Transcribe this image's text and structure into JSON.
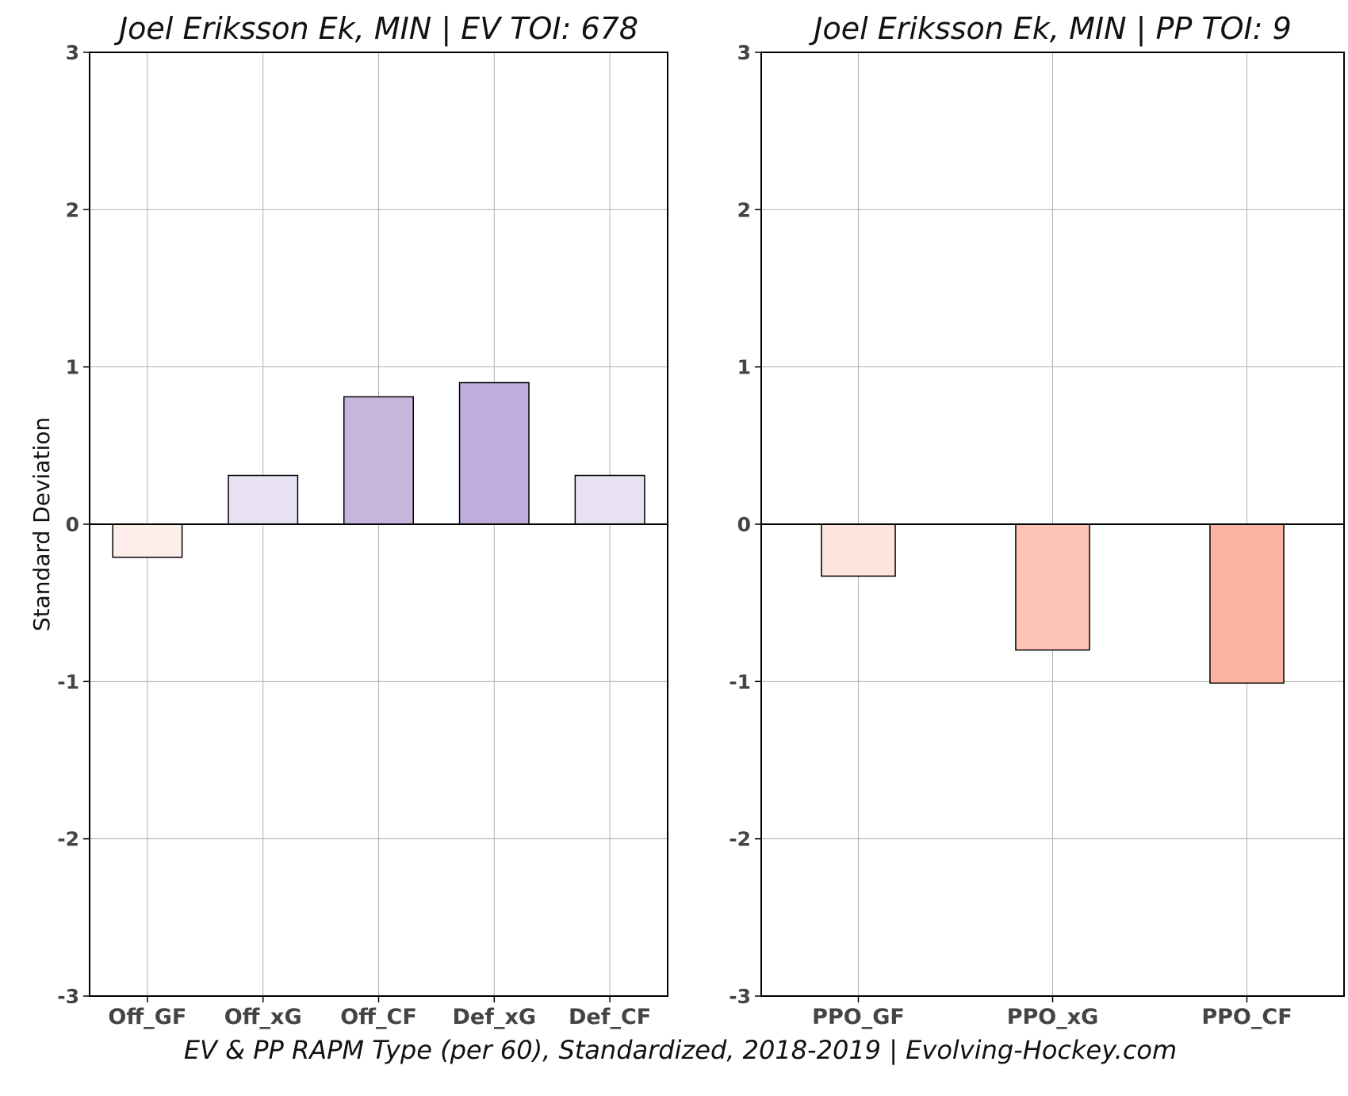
{
  "chart_data": [
    {
      "type": "bar",
      "title": "Joel Eriksson Ek, MIN  |  EV TOI: 678",
      "ylabel": "Standard Deviation",
      "xlabel": "",
      "ylim": [
        -3,
        3
      ],
      "yticks": [
        -3,
        -2,
        -1,
        0,
        1,
        2,
        3
      ],
      "grid": true,
      "categories": [
        "Off_GF",
        "Off_xG",
        "Off_CF",
        "Def_xG",
        "Def_CF"
      ],
      "values": [
        -0.21,
        0.31,
        0.81,
        0.9,
        0.31
      ],
      "colors": [
        "#fdeeec",
        "#e8e1f2",
        "#c6b6de",
        "#bfaddc",
        "#e8e1f2"
      ]
    },
    {
      "type": "bar",
      "title": "Joel Eriksson Ek, MIN  |  PP TOI: 9",
      "ylabel": "",
      "xlabel": "",
      "ylim": [
        -3,
        3
      ],
      "yticks": [
        -3,
        -2,
        -1,
        0,
        1,
        2,
        3
      ],
      "grid": true,
      "categories": [
        "PPO_GF",
        "PPO_xG",
        "PPO_CF"
      ],
      "values": [
        -0.33,
        -0.8,
        -1.01
      ],
      "colors": [
        "#fee4dd",
        "#fec5b6",
        "#fdb4a3"
      ]
    }
  ],
  "caption": "EV & PP RAPM Type (per 60), Standardized, 2018-2019    |    Evolving-Hockey.com"
}
